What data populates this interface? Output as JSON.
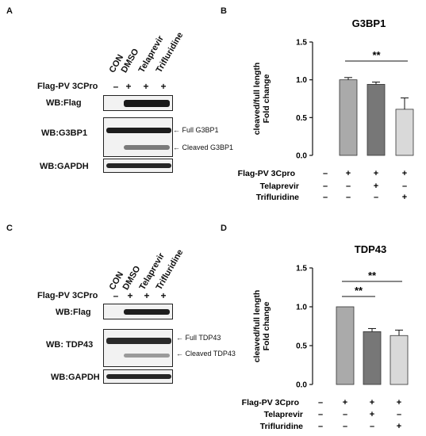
{
  "panels": {
    "A": {
      "letter": "A",
      "columns": [
        "CON",
        "DMSO",
        "Telaprevir",
        "Trifluridine"
      ],
      "treatment_label": "Flag-PV 3CPro",
      "treatment_signs": [
        "–",
        "+",
        "+",
        "+"
      ],
      "blots": [
        {
          "label": "WB:Flag"
        },
        {
          "label": "WB:G3BP1",
          "annotations": [
            "Full G3BP1",
            "Cleaved G3BP1"
          ]
        },
        {
          "label": "WB:GAPDH"
        }
      ]
    },
    "C": {
      "letter": "C",
      "columns": [
        "CON",
        "DMSO",
        "Telaprevir",
        "Trifluridine"
      ],
      "treatment_label": "Flag-PV 3CPro",
      "treatment_signs": [
        "–",
        "+",
        "+",
        "+"
      ],
      "blots": [
        {
          "label": "WB:Flag"
        },
        {
          "label": "WB: TDP43",
          "annotations": [
            "Full TDP43",
            "Cleaved TDP43"
          ]
        },
        {
          "label": "WB:GAPDH"
        }
      ]
    }
  },
  "chart_data": [
    {
      "letter": "B",
      "type": "bar",
      "title": "G3BP1",
      "ylabel": [
        "cleaved/full length",
        "Fold change"
      ],
      "ylim": [
        0,
        1.5
      ],
      "yticks": [
        "0.0",
        "0.5",
        "1.0",
        "1.5"
      ],
      "values": [
        0,
        1.0,
        0.94,
        0.61
      ],
      "errors": [
        0,
        0.03,
        0.03,
        0.15
      ],
      "bar_colors": [
        "#ffffff",
        "#aaaaaa",
        "#777777",
        "#d9d9d9"
      ],
      "significance": [
        {
          "from": 1,
          "to": 3,
          "label": "**"
        }
      ],
      "condition_rows": [
        {
          "label": "Flag-PV 3Cpro",
          "signs": [
            "–",
            "+",
            "+",
            "+"
          ]
        },
        {
          "label": "Telaprevir",
          "signs": [
            "–",
            "–",
            "+",
            "–"
          ]
        },
        {
          "label": "Trifluridine",
          "signs": [
            "–",
            "–",
            "–",
            "+"
          ]
        }
      ]
    },
    {
      "letter": "D",
      "type": "bar",
      "title": "TDP43",
      "ylabel": [
        "cleaved/full length",
        "Fold change"
      ],
      "ylim": [
        0,
        1.5
      ],
      "yticks": [
        "0.0",
        "0.5",
        "1.0",
        "1.5"
      ],
      "values": [
        0,
        1.0,
        0.68,
        0.63
      ],
      "errors": [
        0,
        0,
        0.04,
        0.07
      ],
      "bar_colors": [
        "#ffffff",
        "#aaaaaa",
        "#777777",
        "#d9d9d9"
      ],
      "significance": [
        {
          "from": 1,
          "to": 2,
          "label": "**"
        },
        {
          "from": 1,
          "to": 3,
          "label": "**"
        }
      ],
      "condition_rows": [
        {
          "label": "Flag-PV 3Cpro",
          "signs": [
            "–",
            "+",
            "+",
            "+"
          ]
        },
        {
          "label": "Telaprevir",
          "signs": [
            "–",
            "–",
            "+",
            "–"
          ]
        },
        {
          "label": "Trifluridine",
          "signs": [
            "–",
            "–",
            "–",
            "+"
          ]
        }
      ]
    }
  ]
}
